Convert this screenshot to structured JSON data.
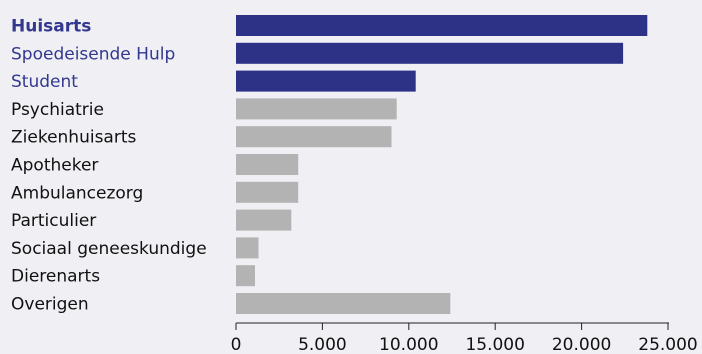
{
  "chart_data": {
    "type": "bar",
    "orientation": "horizontal",
    "categories": [
      "Huisarts",
      "Spoedeisende Hulp",
      "Student",
      "Psychiatrie",
      "Ziekenhuisarts",
      "Apotheker",
      "Ambulancezorg",
      "Particulier",
      "Sociaal geneeskundige",
      "Dierenarts",
      "Overigen"
    ],
    "values": [
      23800,
      22400,
      10400,
      9300,
      9000,
      3600,
      3600,
      3200,
      1300,
      1100,
      12400
    ],
    "highlighted": [
      true,
      true,
      true,
      false,
      false,
      false,
      false,
      false,
      false,
      false,
      false
    ],
    "bold_labels": [
      true,
      false,
      false,
      false,
      false,
      false,
      false,
      false,
      false,
      false,
      false
    ],
    "xlim": [
      0,
      25000
    ],
    "xticks": [
      0,
      5000,
      10000,
      15000,
      20000,
      25000
    ],
    "xtick_labels": [
      "0",
      "5.000",
      "10.000",
      "15.000",
      "20.000",
      "25.000"
    ],
    "title": "",
    "xlabel": "",
    "ylabel": "",
    "grid": false,
    "colors": {
      "highlight": "#2d3286",
      "default": "#b3b3b3",
      "highlight_label": "#33388f",
      "label": "#111111",
      "axis": "#222222",
      "background": "#efeff4"
    }
  }
}
